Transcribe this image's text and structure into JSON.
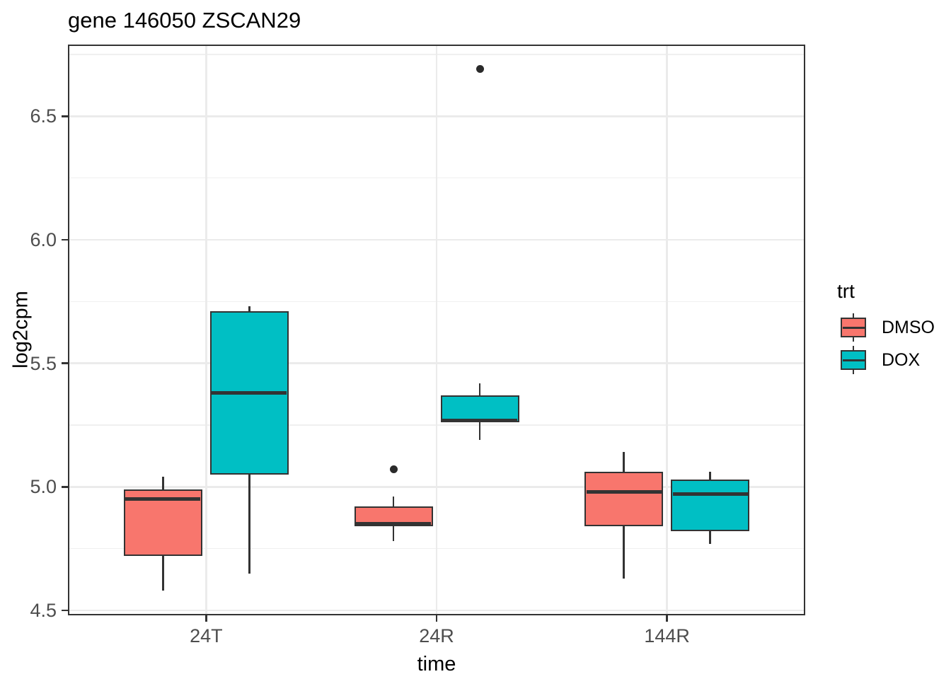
{
  "chart_data": {
    "type": "boxplot",
    "title": "gene 146050 ZSCAN29",
    "xlabel": "time",
    "ylabel": "log2cpm",
    "categories": [
      "24T",
      "24R",
      "144R"
    ],
    "ylim": [
      4.48,
      6.79
    ],
    "y_major_ticks": [
      4.5,
      5.0,
      5.5,
      6.0,
      6.5
    ],
    "y_minor_ticks": [
      4.75,
      5.25,
      5.75,
      6.25,
      6.75
    ],
    "grid": true,
    "legend": {
      "title": "trt",
      "position": "right",
      "entries": [
        {
          "label": "DMSO",
          "color": "#F8766D"
        },
        {
          "label": "DOX",
          "color": "#00BFC4"
        }
      ]
    },
    "series": [
      {
        "name": "DMSO",
        "color": "#F8766D",
        "boxes": [
          {
            "category": "24T",
            "whisker_low": 4.58,
            "q1": 4.72,
            "median": 4.95,
            "q3": 4.99,
            "whisker_high": 5.04,
            "outliers": []
          },
          {
            "category": "24R",
            "whisker_low": 4.78,
            "q1": 4.84,
            "median": 4.85,
            "q3": 4.92,
            "whisker_high": 4.96,
            "outliers": [
              5.07
            ]
          },
          {
            "category": "144R",
            "whisker_low": 4.63,
            "q1": 4.84,
            "median": 4.98,
            "q3": 5.06,
            "whisker_high": 5.14,
            "outliers": []
          }
        ]
      },
      {
        "name": "DOX",
        "color": "#00BFC4",
        "boxes": [
          {
            "category": "24T",
            "whisker_low": 4.65,
            "q1": 5.05,
            "median": 5.38,
            "q3": 5.71,
            "whisker_high": 5.73,
            "outliers": []
          },
          {
            "category": "24R",
            "whisker_low": 5.19,
            "q1": 5.26,
            "median": 5.27,
            "q3": 5.37,
            "whisker_high": 5.42,
            "outliers": [
              6.69
            ]
          },
          {
            "category": "144R",
            "whisker_low": 4.77,
            "q1": 4.82,
            "median": 4.97,
            "q3": 5.03,
            "whisker_high": 5.06,
            "outliers": []
          }
        ]
      }
    ],
    "colors": {
      "box_stroke": "#333333",
      "grid_major": "#EBEBEB",
      "grid_minor": "#F0F0F0",
      "tick_label": "#4D4D4D",
      "text": "#000000",
      "outlier": "#2A2A2A"
    }
  }
}
